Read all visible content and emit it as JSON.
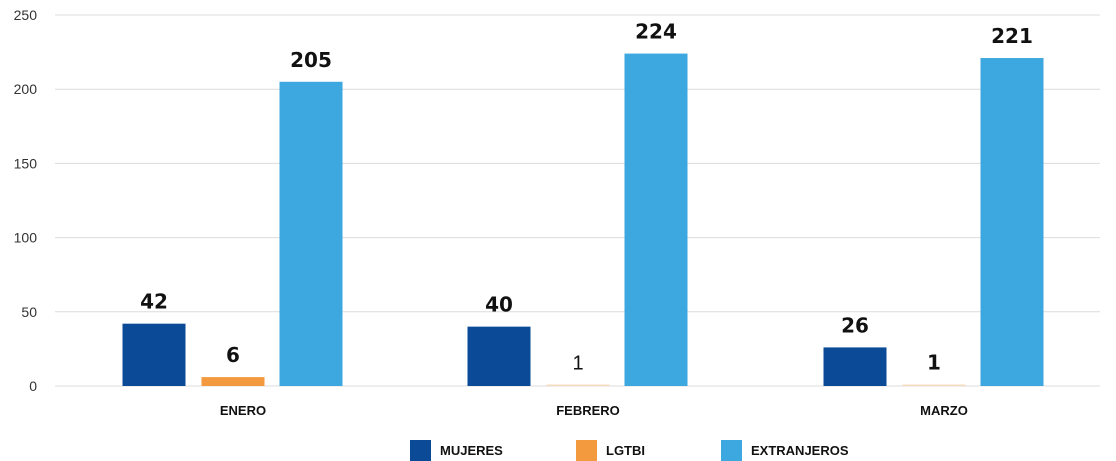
{
  "chart_data": {
    "type": "bar",
    "title": "",
    "xlabel": "",
    "ylabel": "",
    "categories": [
      "ENERO",
      "FEBRERO",
      "MARZO"
    ],
    "series": [
      {
        "name": "MUJERES",
        "color": "#0a4a96",
        "values": [
          42,
          40,
          26
        ],
        "labels": [
          "42",
          "40",
          "26"
        ],
        "label_weight": [
          "bold",
          "bold",
          "bold"
        ]
      },
      {
        "name": "LGTBI",
        "color": "#f39a3e",
        "values": [
          6,
          1,
          1
        ],
        "labels": [
          "6",
          "1",
          "1"
        ],
        "label_weight": [
          "bold",
          "normal",
          "bold"
        ]
      },
      {
        "name": "EXTRANJEROS",
        "color": "#3da7df",
        "values": [
          205,
          224,
          221
        ],
        "labels": [
          "205",
          "224",
          "221"
        ],
        "label_weight": [
          "bold",
          "bold",
          "bold"
        ]
      }
    ],
    "ylim": [
      0,
      250
    ],
    "yticks": [
      0,
      50,
      100,
      150,
      200,
      250
    ],
    "grid": true,
    "legend_position": "bottom-center"
  }
}
